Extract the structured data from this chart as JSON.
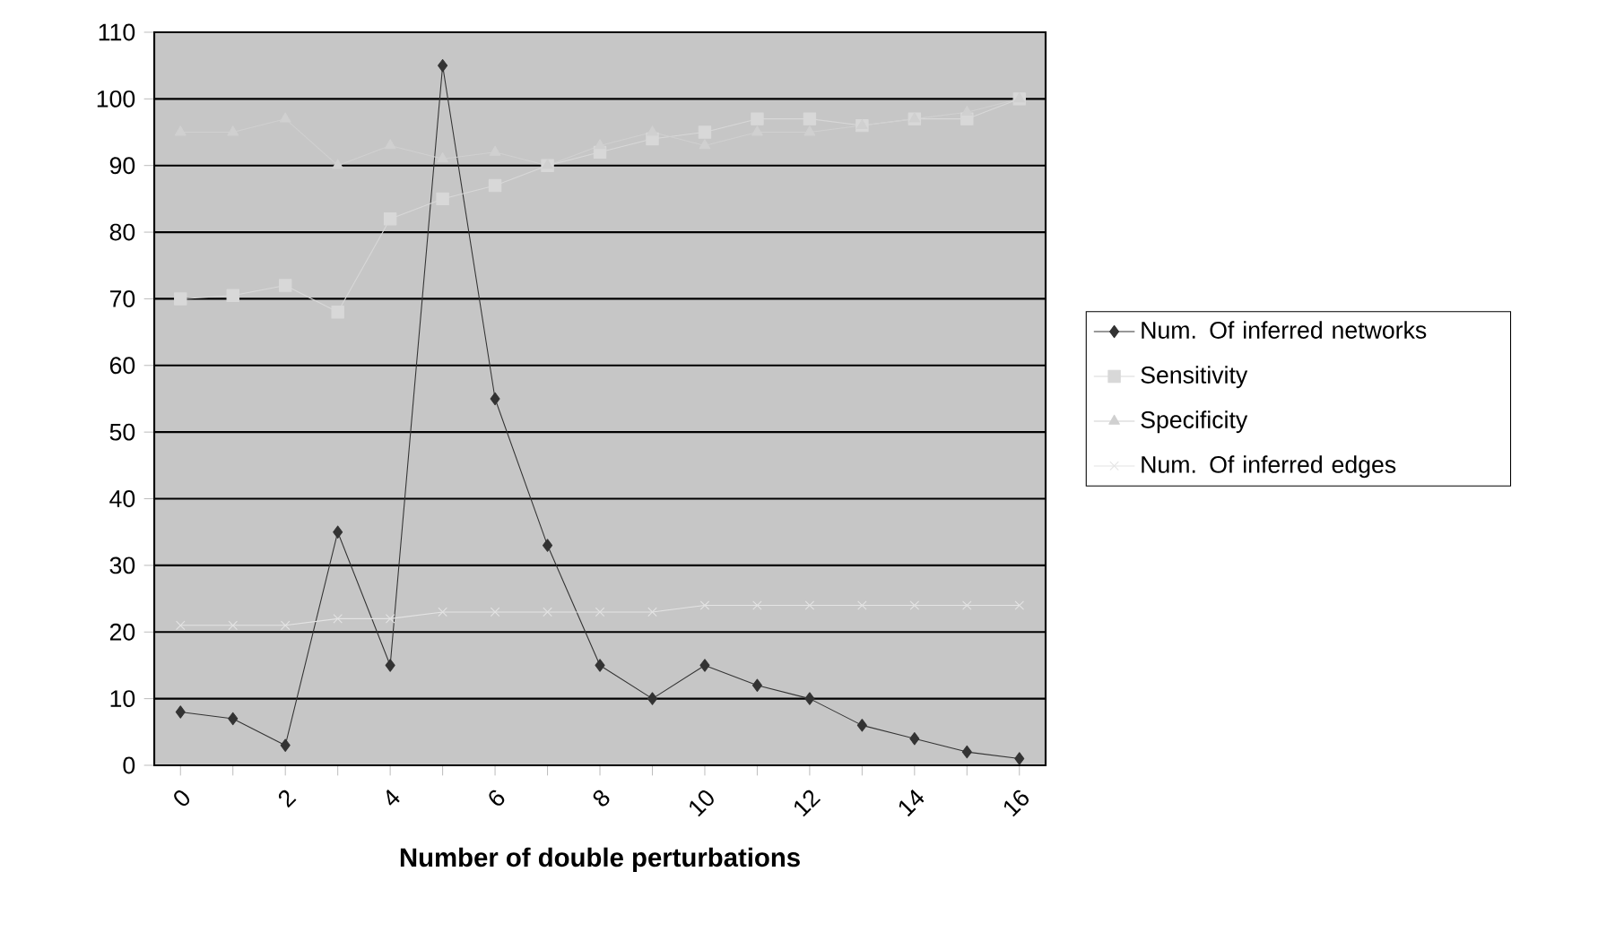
{
  "chart_data": {
    "type": "line",
    "xlabel": "**Number of double perturbations**",
    "categories": [
      "0",
      null,
      "2",
      null,
      "4",
      null,
      "6",
      null,
      "8",
      null,
      "10",
      null,
      "12",
      null,
      "14",
      null,
      "16"
    ],
    "ylim": [
      0,
      110
    ],
    "yticks": [
      0,
      10,
      20,
      30,
      40,
      50,
      60,
      70,
      80,
      90,
      100,
      110
    ],
    "grid": "y",
    "legend": "right",
    "series": [
      {
        "name": "Num. Of inferred networks",
        "color": "#333333",
        "marker": "diamond",
        "values": [
          8,
          7,
          3,
          35,
          15,
          105,
          55,
          33,
          15,
          10,
          15,
          12,
          10,
          6,
          4,
          2,
          1
        ]
      },
      {
        "name": "Sensitivity",
        "color": "#d8d8d8",
        "marker": "square",
        "values": [
          70,
          70.5,
          72,
          68,
          82,
          85,
          87,
          90,
          92,
          94,
          95,
          97,
          97,
          96,
          97,
          97,
          100
        ]
      },
      {
        "name": "Specificity",
        "color": "#d0d0d0",
        "marker": "triangle",
        "values": [
          95,
          95,
          97,
          90,
          93,
          91,
          92,
          90,
          93,
          95,
          93,
          95,
          95,
          96,
          97,
          98,
          100
        ]
      },
      {
        "name": "Num. Of inferred edges",
        "color": "#e4e4e4",
        "marker": "cross",
        "values": [
          21,
          21,
          21,
          22,
          22,
          23,
          23,
          23,
          23,
          23,
          24,
          24,
          24,
          24,
          24,
          24,
          24
        ]
      }
    ]
  }
}
